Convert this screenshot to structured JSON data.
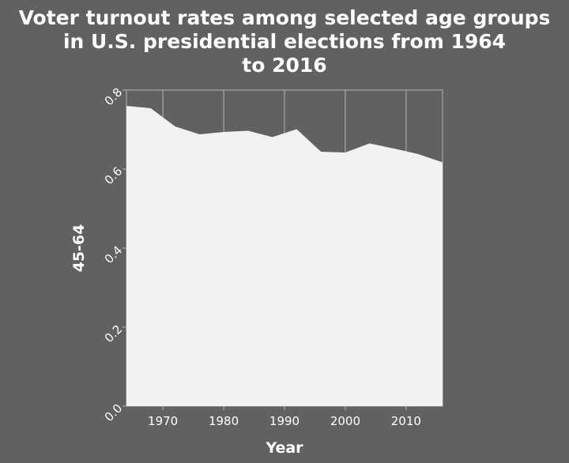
{
  "chart_data": {
    "type": "area",
    "title_lines": [
      "Voter turnout rates among selected age groups",
      "in U.S. presidential elections from 1964",
      "to 2016"
    ],
    "xlabel": "Year",
    "ylabel": "45-64",
    "x": [
      1964,
      1968,
      1972,
      1976,
      1980,
      1984,
      1988,
      1992,
      1996,
      2000,
      2004,
      2008,
      2012,
      2016
    ],
    "values": [
      0.76,
      0.754,
      0.708,
      0.688,
      0.694,
      0.697,
      0.681,
      0.701,
      0.644,
      0.642,
      0.665,
      0.652,
      0.638,
      0.617
    ],
    "xlim": [
      1964,
      2016
    ],
    "ylim": [
      0,
      0.8
    ],
    "xticks": [
      1970,
      1980,
      1990,
      2000,
      2010
    ],
    "yticks": [
      "0.0",
      "0.2",
      "0.4",
      "0.6",
      "0.8"
    ],
    "grid": "vertical",
    "colors": {
      "background": "#616161",
      "fill": "#f2f2f2",
      "grid": "#b5b5b5",
      "text": "#ffffff"
    }
  }
}
